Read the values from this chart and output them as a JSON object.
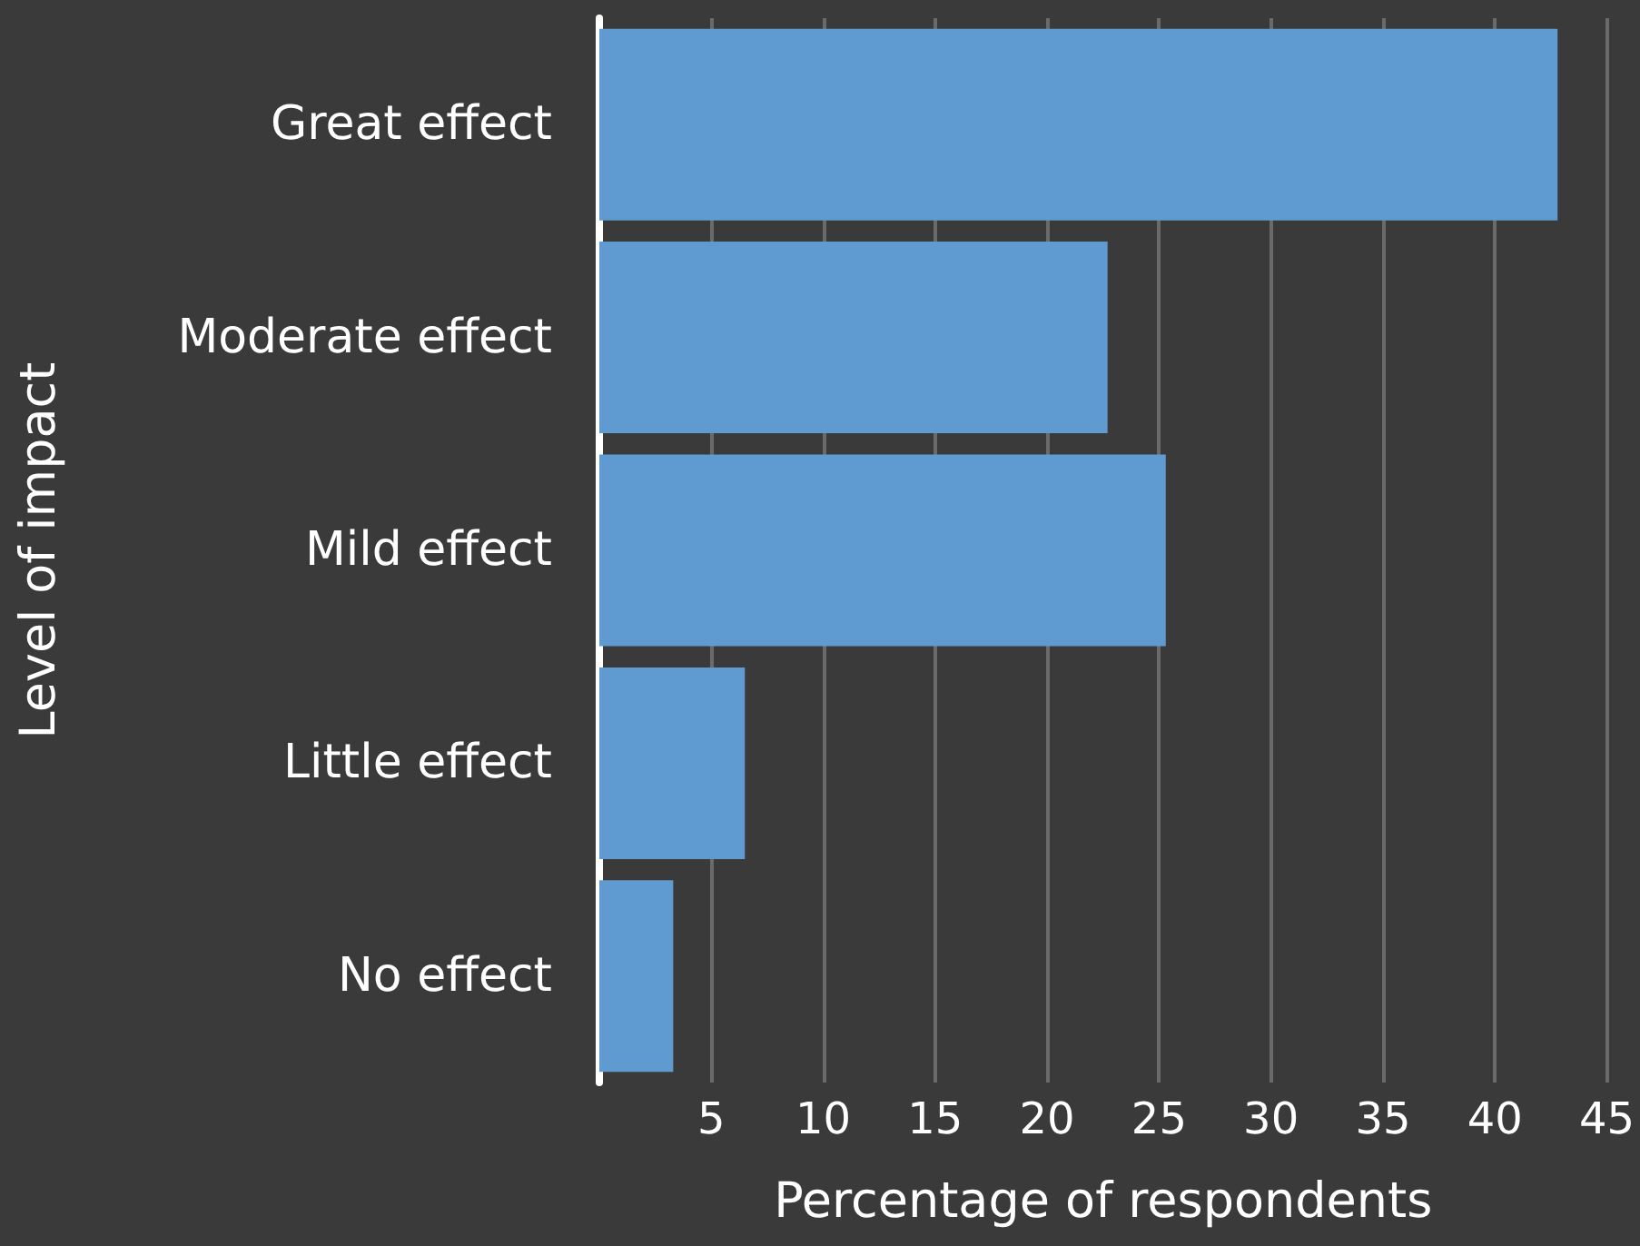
{
  "chart_data": {
    "type": "bar",
    "orientation": "horizontal",
    "xlabel": "Percentage of respondents",
    "ylabel": "Level of impact",
    "categories": [
      "Great effect",
      "Moderate effect",
      "Mild effect",
      "Little effect",
      "No effect"
    ],
    "values": [
      42.8,
      22.7,
      25.3,
      6.5,
      3.3
    ],
    "color": "#5f9bd0",
    "xlim": [
      0,
      45
    ],
    "xticks": [
      5,
      10,
      15,
      20,
      25,
      30,
      35,
      40,
      45
    ],
    "grid": "x"
  }
}
